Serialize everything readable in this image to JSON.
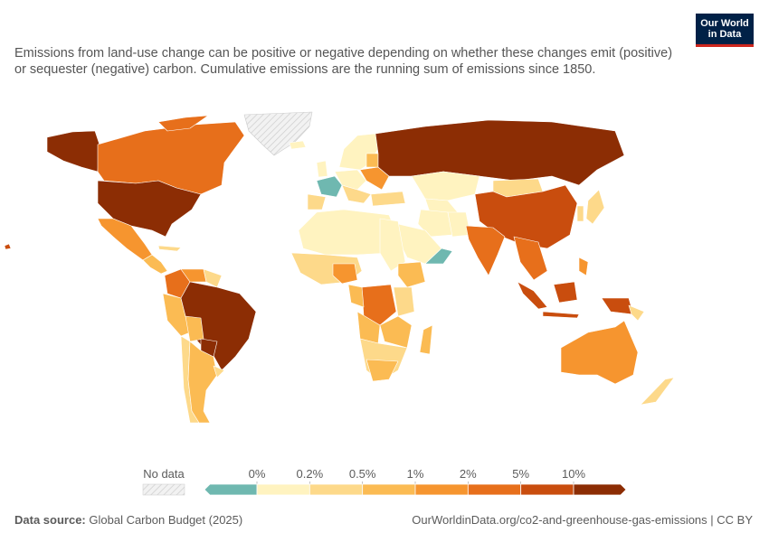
{
  "subtitle": "Emissions from land-use change can be positive or negative depending on whether these changes emit (positive) or sequester (negative) carbon. Cumulative emissions are the running sum of emissions since 1850.",
  "logo": {
    "line1": "Our World",
    "line2": "in Data"
  },
  "legend": {
    "no_data_label": "No data",
    "bins": [
      {
        "label": "0%",
        "color": "#6fb8b0"
      },
      {
        "label": "0.2%",
        "color": "#fff3c0"
      },
      {
        "label": "0.5%",
        "color": "#fdd98a"
      },
      {
        "label": "1%",
        "color": "#fbbb53"
      },
      {
        "label": "2%",
        "color": "#f6952f"
      },
      {
        "label": "5%",
        "color": "#e76f1b"
      },
      {
        "label": "10%",
        "color": "#c94d0e"
      },
      {
        "label": "",
        "color": "#8c2d04"
      }
    ]
  },
  "footer": {
    "source_label": "Data source:",
    "source_value": "Global Carbon Budget (2025)",
    "url": "OurWorldinData.org/co2-and-greenhouse-gas-emissions | CC BY"
  },
  "colors": {
    "negative": "#6fb8b0",
    "lightest": "#fff3c0",
    "light": "#fdd98a",
    "mid": "#fbbb53",
    "orange": "#f6952f",
    "dark_orange": "#e76f1b",
    "red_orange": "#c94d0e",
    "brown": "#8c2d04",
    "no_data": "#e0e0e0"
  }
}
